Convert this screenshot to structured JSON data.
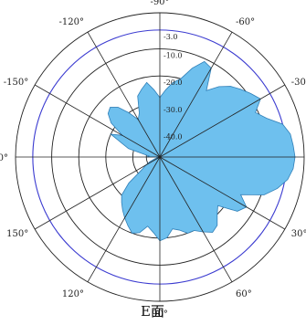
{
  "chart_data": {
    "type": "polar-area",
    "caption": "E面",
    "angle_labels": [
      {
        "angle": -90,
        "text": "-90°"
      },
      {
        "angle": -60,
        "text": "-60°"
      },
      {
        "angle": -30,
        "text": "-30°"
      },
      {
        "angle": 0,
        "text": "0"
      },
      {
        "angle": 30,
        "text": "30°"
      },
      {
        "angle": 60,
        "text": "60°"
      },
      {
        "angle": 90,
        "text": "90°"
      },
      {
        "angle": 120,
        "text": "120°"
      },
      {
        "angle": 150,
        "text": "150°"
      },
      {
        "angle": 180,
        "text": "180°"
      },
      {
        "angle": -150,
        "text": "-150°"
      },
      {
        "angle": -120,
        "text": "-120°"
      }
    ],
    "radial_labels": [
      "-3.0",
      "-10.0",
      "-20.0",
      "-30.0",
      "-40.0"
    ],
    "radial_levels_db": [
      -3,
      -10,
      -20,
      -30,
      -40
    ],
    "r_range_db": [
      -50,
      0
    ],
    "pattern": {
      "angles_deg": [
        0,
        5,
        10,
        15,
        20,
        25,
        30,
        35,
        40,
        45,
        50,
        55,
        60,
        65,
        70,
        75,
        80,
        85,
        90,
        95,
        100,
        105,
        110,
        115,
        120,
        125,
        130,
        135,
        140,
        145,
        150,
        155,
        160,
        165,
        170,
        175,
        180,
        185,
        190,
        195,
        200,
        205,
        210,
        215,
        220,
        225,
        230,
        235,
        240,
        245,
        250,
        255,
        260,
        265,
        270,
        275,
        280,
        285,
        290,
        295,
        300,
        305,
        310,
        315,
        320,
        325,
        330,
        335,
        340,
        345,
        350,
        355
      ],
      "gain_db": [
        0,
        -0.5,
        -2,
        -5,
        -9,
        -17,
        -13,
        -15,
        -22,
        -20,
        -17,
        -16,
        -18,
        -20,
        -20,
        -22,
        -23,
        -20,
        -19,
        -22,
        -24,
        -21,
        -20,
        -22,
        -24,
        -26,
        -28,
        -30,
        -35,
        -42,
        -44,
        -46,
        -48,
        -49,
        -50,
        -50,
        -45,
        -46,
        -44,
        -38,
        -35,
        -30,
        -34,
        -28,
        -25,
        -24,
        -26,
        -30,
        -34,
        -32,
        -26,
        -24,
        -22,
        -25,
        -28,
        -25,
        -22,
        -20,
        -15,
        -11,
        -12,
        -20,
        -16,
        -13,
        -11,
        -9,
        -7,
        -11,
        -8,
        -3,
        -1,
        -0.5
      ]
    }
  }
}
